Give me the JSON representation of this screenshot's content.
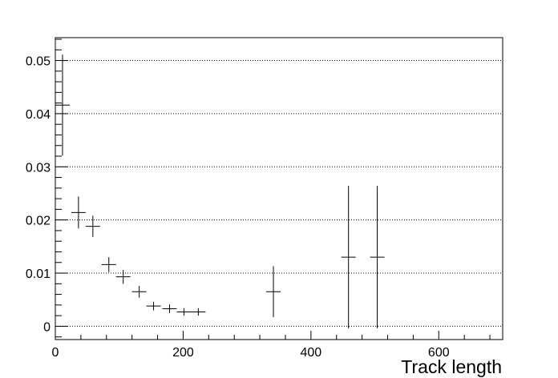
{
  "chart_data": {
    "type": "scatter",
    "xlabel": "Track length",
    "ylabel": "",
    "xlim": [
      0,
      700
    ],
    "ylim": [
      -0.0025,
      0.0543
    ],
    "grid": {
      "x": false,
      "y": true
    },
    "x_ticks": [
      0,
      200,
      400,
      600
    ],
    "y_ticks": [
      0,
      0.01,
      0.02,
      0.03,
      0.04,
      0.05
    ],
    "y_tick_labels": [
      "0",
      "0.01",
      "0.02",
      "0.03",
      "0.04",
      "0.05"
    ],
    "points": [
      {
        "x": 11.25,
        "xerr": 11.25,
        "y": 0.0416,
        "yerr": 0.0095
      },
      {
        "x": 36.25,
        "xerr": 11.25,
        "y": 0.0214,
        "yerr": 0.003
      },
      {
        "x": 58.75,
        "xerr": 11.25,
        "y": 0.0188,
        "yerr": 0.002
      },
      {
        "x": 83.75,
        "xerr": 11.25,
        "y": 0.0116,
        "yerr": 0.0014
      },
      {
        "x": 106.25,
        "xerr": 11.25,
        "y": 0.0093,
        "yerr": 0.0013
      },
      {
        "x": 131.25,
        "xerr": 11.25,
        "y": 0.0065,
        "yerr": 0.0011
      },
      {
        "x": 153.75,
        "xerr": 11.25,
        "y": 0.0038,
        "yerr": 0.0008
      },
      {
        "x": 178.75,
        "xerr": 11.25,
        "y": 0.0033,
        "yerr": 0.0008
      },
      {
        "x": 201.25,
        "xerr": 11.25,
        "y": 0.0027,
        "yerr": 0.0007
      },
      {
        "x": 223.75,
        "xerr": 11.25,
        "y": 0.0027,
        "yerr": 0.0007
      },
      {
        "x": 341.25,
        "xerr": 11.25,
        "y": 0.0065,
        "yerr": 0.0048
      },
      {
        "x": 458.75,
        "xerr": 11.25,
        "y": 0.013,
        "yerr": 0.0134
      },
      {
        "x": 503.75,
        "xerr": 11.25,
        "y": 0.013,
        "yerr": 0.0134
      }
    ]
  }
}
